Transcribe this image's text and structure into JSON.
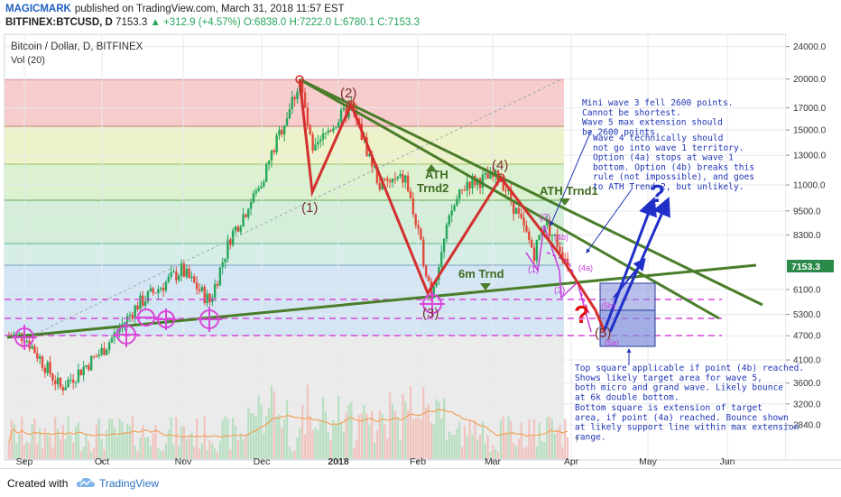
{
  "header": {
    "author": "MAGICMARK",
    "published": "published on TradingView.com, March 31, 2018 11:57 EST",
    "symbol": "BITFINEX:BTCUSD, D",
    "last": "7153.3",
    "change": "+312.9 (+4.57%)",
    "o": "O:6838.0",
    "h": "H:7222.0",
    "l": "L:6780.1",
    "c": "C:7153.3"
  },
  "footer": {
    "created_with": "Created with",
    "brand": "TradingView"
  },
  "chart_data": {
    "type": "candlestick",
    "title": "Bitcoin / Dollar, D, BITFINEX",
    "subtitle": "Vol (20)",
    "last_price_label": "7153.3",
    "y_ticks": [
      "24000.0",
      "20000.0",
      "17000.0",
      "15000.0",
      "13000.0",
      "11000.0",
      "9500.0",
      "8300.0",
      "7153.3",
      "6100.0",
      "5300.0",
      "4700.0",
      "4100.0",
      "3600.0",
      "3200.0",
      "2840.0"
    ],
    "x_ticks": [
      "Sep",
      "Oct",
      "Nov",
      "Dec",
      "2018",
      "Feb",
      "Mar",
      "Apr",
      "May",
      "Jun"
    ],
    "series": [
      {
        "approx_close_path": [
          [
            "2017-09-01",
            4700
          ],
          [
            "2017-09-15",
            3500
          ],
          [
            "2017-10-01",
            4300
          ],
          [
            "2017-10-15",
            5600
          ],
          [
            "2017-11-01",
            6800
          ],
          [
            "2017-11-12",
            5700
          ],
          [
            "2017-11-20",
            8200
          ],
          [
            "2017-12-01",
            10800
          ],
          [
            "2017-12-17",
            19800
          ],
          [
            "2017-12-22",
            13000
          ],
          [
            "2017-12-28",
            15000
          ],
          [
            "2018-01-06",
            17100
          ],
          [
            "2018-01-17",
            11000
          ],
          [
            "2018-01-27",
            11400
          ],
          [
            "2018-02-06",
            6000
          ],
          [
            "2018-02-14",
            9500
          ],
          [
            "2018-02-20",
            11200
          ],
          [
            "2018-03-05",
            11500
          ],
          [
            "2018-03-18",
            7500
          ],
          [
            "2018-03-22",
            9000
          ],
          [
            "2018-03-31",
            7153.3
          ]
        ]
      }
    ],
    "wave_labels": [
      "(1)",
      "(2)",
      "(3)",
      "(4)",
      "(5)"
    ],
    "micro_labels": [
      "(1)",
      "(2)",
      "(3)",
      "(4a)",
      "(4b)",
      "(5a)",
      "(5b)"
    ],
    "trendline_labels": [
      "ATH Trnd1",
      "ATH\nTrnd2",
      "6m Trnd"
    ],
    "question_marks": [
      "?",
      "?",
      "?"
    ],
    "notes": [
      "Mini wave 3 fell 2600 points.\nCannot be shortest.\nWave 5 max extension should\nbe 2600 points.",
      "Wave 4 technically should\nnot go into wave 1 territory.\nOption (4a) stops at wave 1\nbottom. Option (4b) breaks this\nrule (not impossible), and goes\nto ATH Trend 2, but unlikely.",
      "Top square applicable if point (4b) reached.\nShows likely target area for wave 5,\nboth micro and grand wave. Likely bounce\nat 6k double bottom.",
      "Bottom square is extension of target\narea, if point (4a) reached. Bounce shown\nat likely support line within max extension\nrange."
    ],
    "colors": {
      "up": "#26a65b",
      "down": "#e04a3a",
      "wave": "#d32f2f",
      "trend": "#4a7d2a",
      "micro": "#c83cdc",
      "target": "#7b8bd8",
      "arrow": "#1f2fc8",
      "note": "#1f35b5"
    }
  }
}
